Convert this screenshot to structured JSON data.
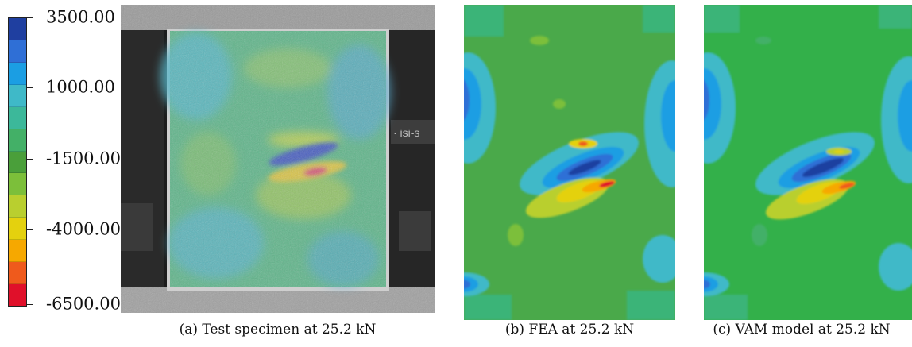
{
  "legend": {
    "labels": [
      "3500.00",
      "1000.00",
      "-1500.00",
      "-4000.00",
      "-6500.00"
    ],
    "colors": [
      "#1f3fa0",
      "#2f6fd6",
      "#1b9ee3",
      "#3fb9c8",
      "#3cb89a",
      "#43b067",
      "#4a9f3a",
      "#7cbf3a",
      "#b9cf2f",
      "#e4d10e",
      "#f6a800",
      "#ef5a1c",
      "#e0102a"
    ]
  },
  "captions": {
    "a": "(a) Test specimen at 25.2 kN",
    "b": "(b) FEA at 25.2 kN",
    "c": "(c) VAM model at 25.2 kN"
  },
  "panels": {
    "a": {
      "overlay_text": "· isi-s"
    }
  }
}
